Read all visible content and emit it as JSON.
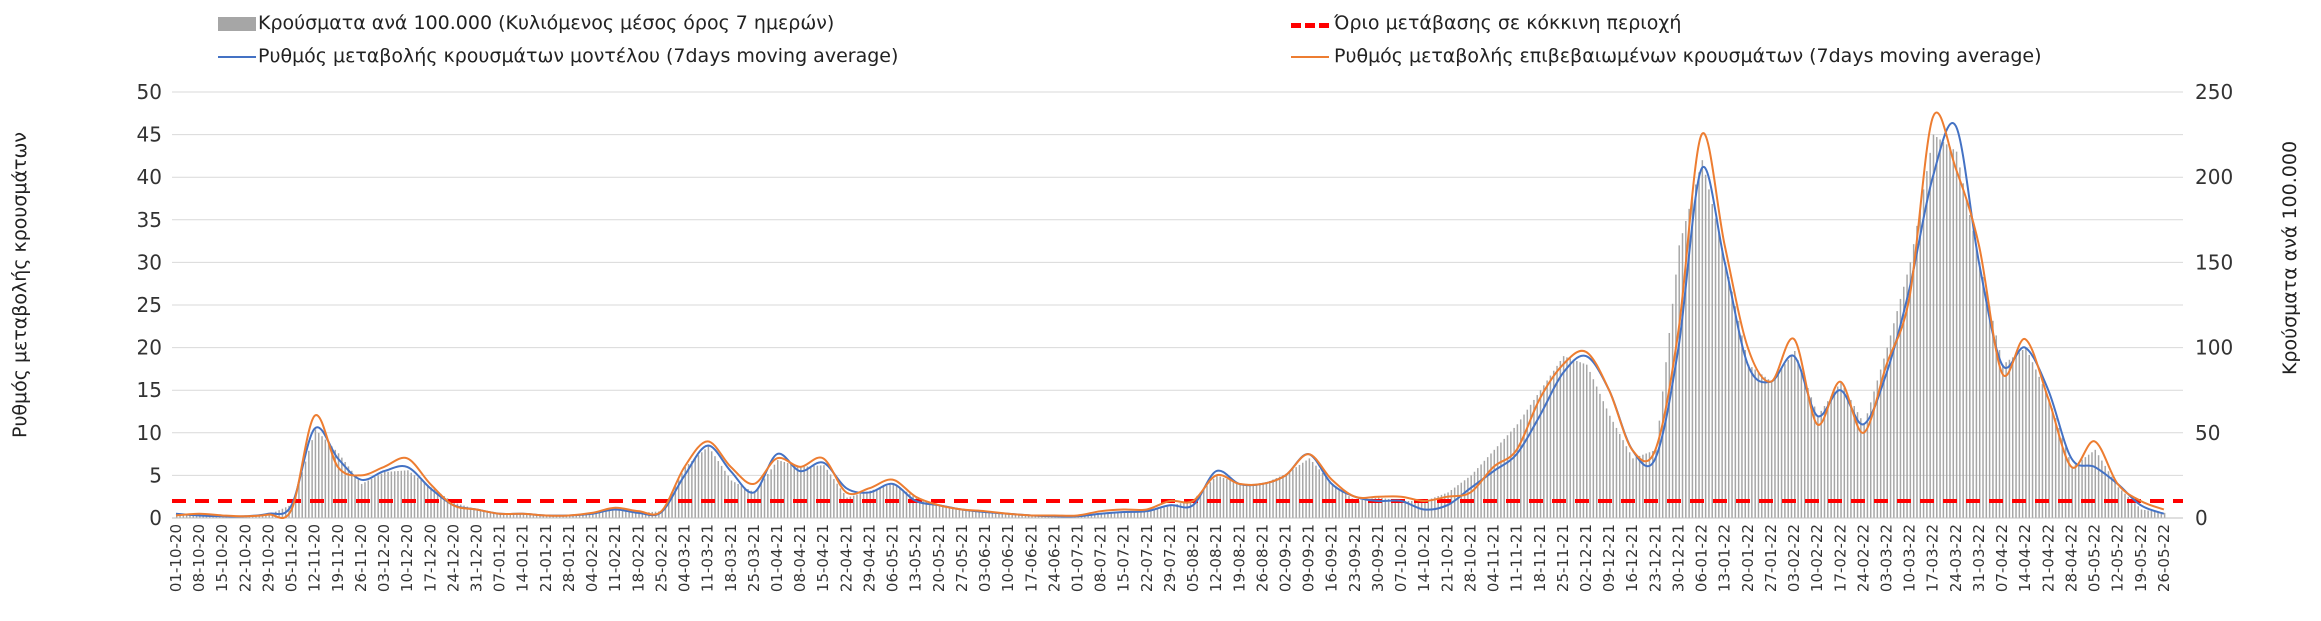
{
  "chart_data": {
    "type": "bar+line",
    "legend": [
      {
        "label": "Κρούσματα ανά 100.000 (Κυλιόμενος μέσος όρος 7 ημερών)",
        "kind": "bar",
        "color": "#a6a6a6"
      },
      {
        "label": "Όριο μετάβασης σε κόκκινη περιοχή",
        "kind": "dashed",
        "color": "#ff0000"
      },
      {
        "label": "Ρυθμός μεταβολής κρουσμάτων μοντέλου (7days moving average)",
        "kind": "line",
        "color": "#4472c4"
      },
      {
        "label": "Ρυθμός μεταβολής επιβεβαιωμένων κρουσμάτων (7days moving average)",
        "kind": "line",
        "color": "#ed7d31"
      }
    ],
    "ylabel_left": "Ρυθμός μεταβολής κρουσμάτων",
    "ylabel_right": "Κρούσματα ανά 100.000",
    "ylim_left": [
      0,
      50
    ],
    "ylim_right": [
      0,
      250
    ],
    "yticks_left": [
      "0",
      "5",
      "10",
      "15",
      "20",
      "25",
      "30",
      "35",
      "40",
      "45",
      "50"
    ],
    "yticks_right": [
      "0",
      "50",
      "100",
      "150",
      "200",
      "250"
    ],
    "grid": true,
    "x_tick_labels": [
      "01-10-20",
      "08-10-20",
      "15-10-20",
      "22-10-20",
      "29-10-20",
      "05-11-20",
      "12-11-20",
      "19-11-20",
      "26-11-20",
      "03-12-20",
      "10-12-20",
      "17-12-20",
      "24-12-20",
      "31-12-20",
      "07-01-21",
      "14-01-21",
      "21-01-21",
      "28-01-21",
      "04-02-21",
      "11-02-21",
      "18-02-21",
      "25-02-21",
      "04-03-21",
      "11-03-21",
      "18-03-21",
      "25-03-21",
      "01-04-21",
      "08-04-21",
      "15-04-21",
      "22-04-21",
      "29-04-21",
      "06-05-21",
      "13-05-21",
      "20-05-21",
      "27-05-21",
      "03-06-21",
      "10-06-21",
      "17-06-21",
      "24-06-21",
      "01-07-21",
      "08-07-21",
      "15-07-21",
      "22-07-21",
      "29-07-21",
      "05-08-21",
      "12-08-21",
      "19-08-21",
      "26-08-21",
      "02-09-21",
      "09-09-21",
      "16-09-21",
      "23-09-21",
      "30-09-21",
      "07-10-21",
      "14-10-21",
      "21-10-21",
      "28-10-21",
      "04-11-21",
      "11-11-21",
      "18-11-21",
      "25-11-21",
      "02-12-21",
      "09-12-21",
      "16-12-21",
      "23-12-21",
      "30-12-21",
      "06-01-22",
      "13-01-22",
      "20-01-22",
      "27-01-22",
      "03-02-22",
      "10-02-22",
      "17-02-22",
      "24-02-22",
      "03-03-22",
      "10-03-22",
      "17-03-22",
      "24-03-22",
      "31-03-22",
      "07-04-22",
      "14-04-22",
      "21-04-22",
      "28-04-22",
      "05-05-22",
      "12-05-22",
      "19-05-22",
      "26-05-22"
    ],
    "threshold_left": 2,
    "weekly_cases_per_100k": [
      2.5,
      1.5,
      1.0,
      0.5,
      2,
      8,
      52,
      38,
      20,
      27,
      28,
      18,
      9,
      5,
      3,
      2,
      1.5,
      1.5,
      3,
      5,
      3,
      4,
      30,
      42,
      22,
      15,
      34,
      30,
      31,
      12,
      16,
      20,
      12,
      8,
      5,
      3,
      2,
      1,
      1,
      1,
      3,
      4,
      4,
      7,
      11,
      25,
      20,
      20,
      26,
      35,
      20,
      10,
      12,
      10,
      10,
      15,
      25,
      40,
      55,
      75,
      95,
      90,
      60,
      35,
      40,
      160,
      210,
      150,
      90,
      80,
      98,
      60,
      80,
      55,
      100,
      150,
      225,
      215,
      150,
      90,
      100,
      70,
      30,
      40,
      18,
      5,
      3
    ],
    "series": [
      {
        "name": "Ρυθμός μεταβολής κρουσμάτων μοντέλου (7days moving average)",
        "values": [
          0.5,
          0.3,
          0.2,
          0.2,
          0.5,
          1.5,
          10.5,
          7,
          4.5,
          5.5,
          6,
          3.5,
          1.5,
          1,
          0.5,
          0.5,
          0.3,
          0.3,
          0.5,
          1,
          0.6,
          0.7,
          5,
          8.5,
          5.5,
          3,
          7.5,
          5.5,
          6.5,
          3.5,
          3,
          4,
          2,
          1.5,
          1,
          0.7,
          0.5,
          0.3,
          0.2,
          0.2,
          0.5,
          0.7,
          0.8,
          1.5,
          1.5,
          5.5,
          4,
          4,
          5,
          7.5,
          4,
          2.5,
          2,
          2,
          1,
          1.5,
          3.5,
          5.5,
          7.5,
          12,
          17,
          19,
          15,
          8,
          7,
          20,
          41,
          30,
          18,
          16,
          19,
          12,
          15,
          11,
          17,
          27,
          40,
          46,
          30,
          18,
          20,
          15,
          7,
          6,
          4,
          1.5,
          0.5
        ]
      },
      {
        "name": "Ρυθμός μεταβολής επιβεβαιωμένων κρουσμάτων (7days moving average)",
        "values": [
          0.3,
          0.5,
          0.3,
          0.2,
          0.4,
          1,
          12,
          6,
          5,
          6,
          7,
          4,
          1.5,
          1,
          0.5,
          0.5,
          0.3,
          0.3,
          0.6,
          1.2,
          0.8,
          0.8,
          6,
          9,
          6,
          4,
          7,
          6,
          7,
          3,
          3.5,
          4.5,
          2.5,
          1.5,
          1,
          0.8,
          0.5,
          0.3,
          0.3,
          0.3,
          0.8,
          1,
          1,
          2,
          2,
          5,
          4,
          4,
          5,
          7.5,
          4.5,
          2.5,
          2.5,
          2.5,
          2,
          2.5,
          3,
          6,
          8,
          14,
          18,
          19.5,
          15,
          8,
          8,
          22,
          45,
          32,
          20,
          16,
          21,
          11,
          16,
          10,
          18,
          26,
          47,
          41,
          32,
          17,
          21,
          14,
          6,
          9,
          4,
          2,
          1
        ]
      }
    ]
  }
}
